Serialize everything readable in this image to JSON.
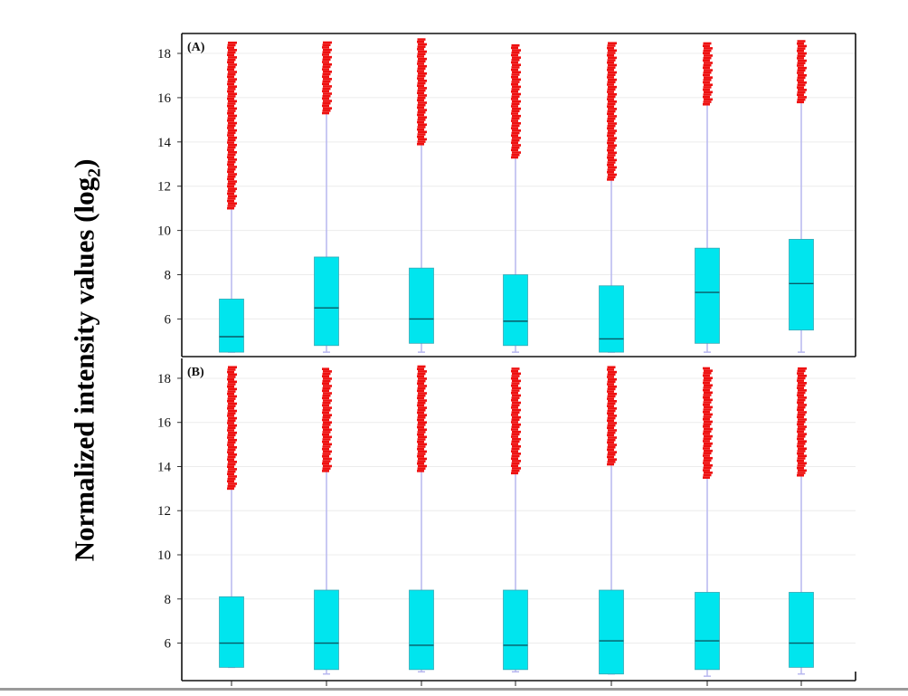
{
  "figure": {
    "ylabel_text": "Normalized intensity values (log",
    "ylabel_sub": "2",
    "ylabel_close": ")"
  },
  "chart_data": [
    {
      "type": "box",
      "panel_label": "(A)",
      "ylim": [
        4.3,
        18.9
      ],
      "yticks": [
        6,
        8,
        10,
        12,
        14,
        16,
        18
      ],
      "grid": true,
      "colors": {
        "box": "#00e5ee",
        "whisker": "#b7b7ef",
        "outlier": "#ee1111"
      },
      "boxes": [
        {
          "whisker_low": 4.5,
          "q1": 4.5,
          "median": 5.2,
          "q3": 6.9,
          "whisker_high": 11.0,
          "outlier_max": 18.5
        },
        {
          "whisker_low": 4.5,
          "q1": 4.8,
          "median": 6.5,
          "q3": 8.8,
          "whisker_high": 15.3,
          "outlier_max": 18.5
        },
        {
          "whisker_low": 4.5,
          "q1": 4.9,
          "median": 6.0,
          "q3": 8.3,
          "whisker_high": 13.9,
          "outlier_max": 18.7
        },
        {
          "whisker_low": 4.5,
          "q1": 4.8,
          "median": 5.9,
          "q3": 8.0,
          "whisker_high": 13.3,
          "outlier_max": 18.4
        },
        {
          "whisker_low": 4.5,
          "q1": 4.5,
          "median": 5.1,
          "q3": 7.5,
          "whisker_high": 12.3,
          "outlier_max": 18.5
        },
        {
          "whisker_low": 4.5,
          "q1": 4.9,
          "median": 7.2,
          "q3": 9.2,
          "whisker_high": 15.7,
          "outlier_max": 18.5
        },
        {
          "whisker_low": 4.5,
          "q1": 5.5,
          "median": 7.6,
          "q3": 9.6,
          "whisker_high": 15.8,
          "outlier_max": 18.6
        }
      ]
    },
    {
      "type": "box",
      "panel_label": "(B)",
      "ylim": [
        4.3,
        18.9
      ],
      "yticks": [
        6,
        8,
        10,
        12,
        14,
        16,
        18
      ],
      "grid": true,
      "colors": {
        "box": "#00e5ee",
        "whisker": "#b7b7ef",
        "outlier": "#ee1111"
      },
      "boxes": [
        {
          "whisker_low": 4.9,
          "q1": 4.9,
          "median": 6.0,
          "q3": 8.1,
          "whisker_high": 13.0,
          "outlier_max": 18.6
        },
        {
          "whisker_low": 4.6,
          "q1": 4.8,
          "median": 6.0,
          "q3": 8.4,
          "whisker_high": 13.8,
          "outlier_max": 18.5
        },
        {
          "whisker_low": 4.7,
          "q1": 4.8,
          "median": 5.9,
          "q3": 8.4,
          "whisker_high": 13.8,
          "outlier_max": 18.6
        },
        {
          "whisker_low": 4.7,
          "q1": 4.8,
          "median": 5.9,
          "q3": 8.4,
          "whisker_high": 13.7,
          "outlier_max": 18.5
        },
        {
          "whisker_low": 4.6,
          "q1": 4.6,
          "median": 6.1,
          "q3": 8.4,
          "whisker_high": 14.1,
          "outlier_max": 18.5
        },
        {
          "whisker_low": 4.5,
          "q1": 4.8,
          "median": 6.1,
          "q3": 8.3,
          "whisker_high": 13.5,
          "outlier_max": 18.5
        },
        {
          "whisker_low": 4.6,
          "q1": 4.9,
          "median": 6.0,
          "q3": 8.3,
          "whisker_high": 13.6,
          "outlier_max": 18.5
        }
      ]
    }
  ]
}
